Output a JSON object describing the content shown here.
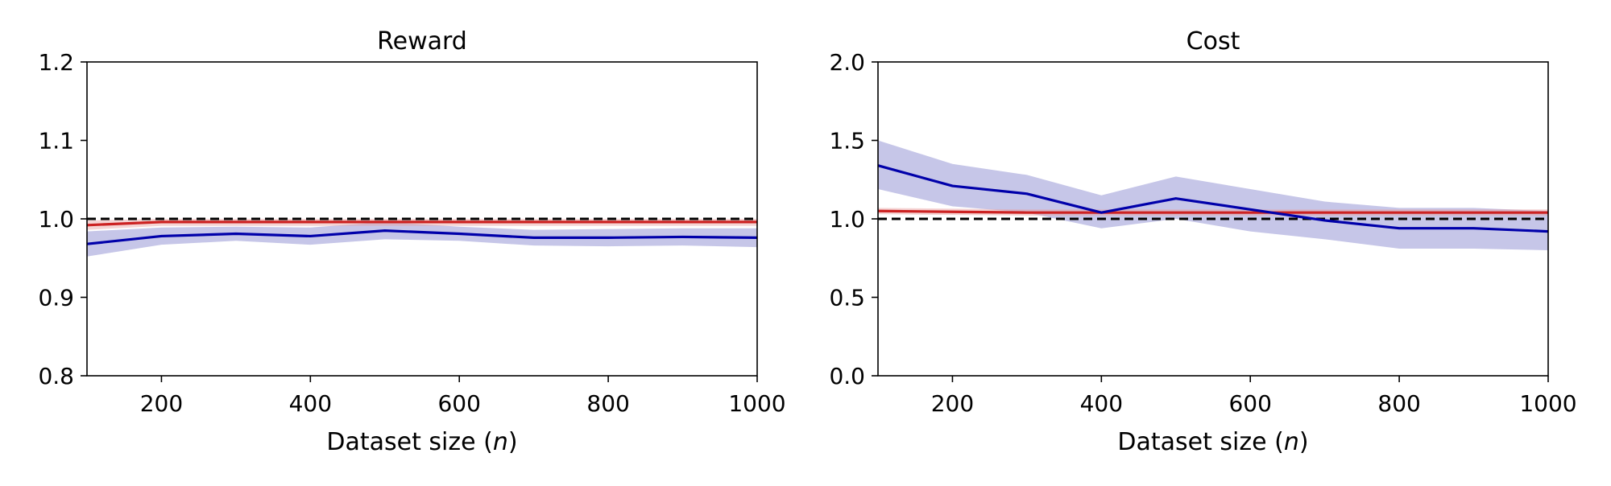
{
  "chart_data": [
    {
      "type": "line",
      "title": "Reward",
      "xlabel": "Dataset size (n)",
      "xlabel_parts": {
        "prefix": "Dataset size (",
        "var": "n",
        "suffix": ")"
      },
      "ylabel": "",
      "xlim": [
        100,
        1000
      ],
      "ylim": [
        0.8,
        1.2
      ],
      "xticks": [
        "200",
        "400",
        "600",
        "800",
        "1000"
      ],
      "xtick_values": [
        200,
        400,
        600,
        800,
        1000
      ],
      "yticks": [
        "0.8",
        "0.9",
        "1.0",
        "1.1",
        "1.2"
      ],
      "ytick_values": [
        0.8,
        0.9,
        1.0,
        1.1,
        1.2
      ],
      "grid": false,
      "reference_line": {
        "y": 1.0,
        "style": "dashed",
        "color": "#000000"
      },
      "x": [
        100,
        200,
        300,
        400,
        500,
        600,
        700,
        800,
        900,
        1000
      ],
      "series": [
        {
          "color": "#0000aa",
          "band_color": "#8080cc",
          "values": [
            0.968,
            0.978,
            0.981,
            0.978,
            0.985,
            0.981,
            0.976,
            0.976,
            0.977,
            0.976
          ],
          "lower": [
            0.952,
            0.967,
            0.972,
            0.967,
            0.974,
            0.972,
            0.966,
            0.965,
            0.966,
            0.964
          ],
          "upper": [
            0.984,
            0.989,
            0.99,
            0.989,
            0.996,
            0.99,
            0.986,
            0.987,
            0.988,
            0.988
          ]
        },
        {
          "color": "#cc2222",
          "band_color": "#e8a0a0",
          "values": [
            0.992,
            0.996,
            0.996,
            0.996,
            0.996,
            0.996,
            0.996,
            0.996,
            0.996,
            0.996
          ],
          "lower": [
            0.986,
            0.991,
            0.991,
            0.991,
            0.991,
            0.991,
            0.991,
            0.991,
            0.991,
            0.991
          ],
          "upper": [
            0.998,
            1.0,
            1.0,
            1.0,
            1.0,
            1.0,
            1.0,
            1.0,
            1.0,
            1.0
          ]
        }
      ]
    },
    {
      "type": "line",
      "title": "Cost",
      "xlabel": "Dataset size (n)",
      "xlabel_parts": {
        "prefix": "Dataset size (",
        "var": "n",
        "suffix": ")"
      },
      "ylabel": "",
      "xlim": [
        100,
        1000
      ],
      "ylim": [
        0.0,
        2.0
      ],
      "xticks": [
        "200",
        "400",
        "600",
        "800",
        "1000"
      ],
      "xtick_values": [
        200,
        400,
        600,
        800,
        1000
      ],
      "yticks": [
        "0.0",
        "0.5",
        "1.0",
        "1.5",
        "2.0"
      ],
      "ytick_values": [
        0.0,
        0.5,
        1.0,
        1.5,
        2.0
      ],
      "grid": false,
      "reference_line": {
        "y": 1.0,
        "style": "dashed",
        "color": "#000000"
      },
      "x": [
        100,
        200,
        300,
        400,
        500,
        600,
        700,
        800,
        900,
        1000
      ],
      "series": [
        {
          "color": "#0000aa",
          "band_color": "#8080cc",
          "values": [
            1.34,
            1.21,
            1.16,
            1.04,
            1.13,
            1.06,
            0.99,
            0.94,
            0.94,
            0.92
          ],
          "lower": [
            1.19,
            1.08,
            1.04,
            0.94,
            1.0,
            0.92,
            0.87,
            0.81,
            0.81,
            0.8
          ],
          "upper": [
            1.5,
            1.35,
            1.28,
            1.15,
            1.27,
            1.19,
            1.11,
            1.07,
            1.07,
            1.05
          ]
        },
        {
          "color": "#cc2222",
          "band_color": "#e8a0a0",
          "values": [
            1.05,
            1.045,
            1.04,
            1.04,
            1.04,
            1.04,
            1.04,
            1.04,
            1.04,
            1.04
          ],
          "lower": [
            1.03,
            1.025,
            1.02,
            1.02,
            1.02,
            1.02,
            1.02,
            1.02,
            1.02,
            1.02
          ],
          "upper": [
            1.07,
            1.065,
            1.06,
            1.06,
            1.06,
            1.06,
            1.06,
            1.06,
            1.06,
            1.06
          ]
        }
      ]
    }
  ]
}
